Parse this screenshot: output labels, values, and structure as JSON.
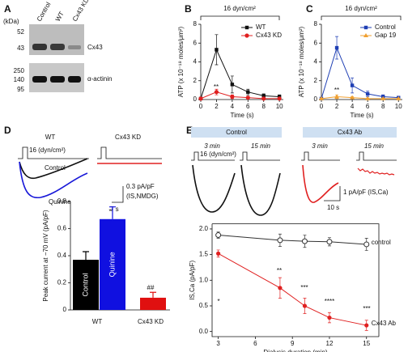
{
  "panels": {
    "letters": [
      "A",
      "B",
      "C",
      "D",
      "E"
    ],
    "blot": {
      "unit": "(kDa)",
      "markers": [
        "52",
        "43",
        "250",
        "140",
        "95"
      ],
      "lanes": [
        "Control",
        "WT",
        "Cx43 KD"
      ],
      "bands": [
        "Cx43",
        "α-actinin"
      ]
    },
    "d_traces": {
      "conditions": [
        "WT",
        "Cx43 KD"
      ],
      "stimulus": "16 (dyn/cm²)",
      "labels": [
        "Control",
        "Quinine"
      ],
      "scale_y": "0.3 pA/pF",
      "scale_y_unit": "(IS,NMDG)",
      "scale_x": "7 s"
    },
    "e_traces": {
      "groups": [
        "Control",
        "Cx43 Ab"
      ],
      "times": [
        "3 min",
        "15 min",
        "3 min",
        "15 min"
      ],
      "stimulus": "16 (dyn/cm²)",
      "scale_y": "1 pA/pF (IS,Ca)",
      "scale_x": "10 s"
    }
  },
  "chart_data": [
    {
      "type": "line",
      "title": "16 dyn/cm²",
      "x": [
        0,
        2,
        4,
        6,
        8,
        10
      ],
      "xlim": [
        0,
        10.5
      ],
      "xticks": [
        0,
        2,
        4,
        6,
        8,
        10
      ],
      "ylim": [
        0,
        8
      ],
      "yticks": [
        0,
        2,
        4,
        6,
        8
      ],
      "x_label": "Time (s)",
      "y_label": "ATP (x 10⁻¹⁸ moles/μm²)",
      "legend": "upper right",
      "annotations": [
        "**"
      ],
      "series": [
        {
          "name": "WT",
          "color": "#111111",
          "marker": "square",
          "values": [
            0.1,
            5.3,
            1.6,
            0.8,
            0.4,
            0.3
          ],
          "errors": [
            0.1,
            1.6,
            0.9,
            0.3,
            0.2,
            0.2
          ]
        },
        {
          "name": "Cx43 KD",
          "color": "#e02020",
          "marker": "circle",
          "values": [
            0.1,
            0.8,
            0.3,
            0.2,
            0.1,
            0.1
          ],
          "errors": [
            0.05,
            0.3,
            0.2,
            0.1,
            0.05,
            0.05
          ]
        }
      ]
    },
    {
      "type": "line",
      "title": "16 dyn/cm²",
      "x": [
        0,
        2,
        4,
        6,
        8,
        10
      ],
      "xlim": [
        0,
        10.5
      ],
      "xticks": [
        0,
        2,
        4,
        6,
        8,
        10
      ],
      "ylim": [
        0,
        8
      ],
      "yticks": [
        0,
        2,
        4,
        6,
        8
      ],
      "x_label": "Time (s)",
      "y_label": "ATP (x 10⁻¹⁸ moles/μm²)",
      "legend": "upper right",
      "annotations": [
        "**"
      ],
      "series": [
        {
          "name": "Control",
          "color": "#1f3fb4",
          "marker": "square",
          "values": [
            0.1,
            5.5,
            1.5,
            0.6,
            0.3,
            0.2
          ],
          "errors": [
            0.1,
            1.2,
            0.8,
            0.3,
            0.2,
            0.1
          ]
        },
        {
          "name": "Gap 19",
          "color": "#f0a030",
          "marker": "triangle",
          "values": [
            0.1,
            0.3,
            0.2,
            0.1,
            0.1,
            0.1
          ],
          "errors": [
            0.05,
            0.2,
            0.1,
            0.05,
            0.05,
            0.05
          ]
        }
      ]
    },
    {
      "type": "bar",
      "categories": [
        "Control",
        "Quinine",
        null
      ],
      "values": [
        0.37,
        0.67,
        0.09
      ],
      "errors": [
        0.06,
        0.09,
        0.04
      ],
      "colors": [
        "#000000",
        "#1010e0",
        "#e01010"
      ],
      "ylim": [
        0,
        0.8
      ],
      "yticks": [
        0,
        0.2,
        0.4,
        0.6,
        0.8
      ],
      "y_label": "Peak current at −70 mV (pA/pF)",
      "groups": [
        "WT",
        "Cx43 KD"
      ],
      "annotations": [
        "*",
        "##"
      ]
    },
    {
      "type": "line",
      "x": [
        3,
        8,
        10,
        12,
        15
      ],
      "xlim": [
        2.5,
        16
      ],
      "xticks": [
        3,
        6,
        9,
        12,
        15
      ],
      "ylim": [
        -0.1,
        2.1
      ],
      "yticks": [
        {
          "value": 0,
          "label": "0.0"
        },
        {
          "value": 0.5,
          "label": "0.5"
        },
        {
          "value": 1,
          "label": "1.0"
        },
        {
          "value": 1.5,
          "label": "1.5"
        },
        {
          "value": 2,
          "label": "2.0"
        }
      ],
      "x_label": "Dialysis duration (min)",
      "y_label": "IS,Ca (pA/pF)",
      "legend": "inline",
      "annotations": [
        "*",
        "**",
        "***",
        "****",
        "***"
      ],
      "series": [
        {
          "name": "control",
          "color": "#333333",
          "marker": "open-circle",
          "values": [
            1.88,
            1.78,
            1.76,
            1.75,
            1.7
          ],
          "errors": [
            0.06,
            0.12,
            0.12,
            0.08,
            0.12
          ]
        },
        {
          "name": "Cx43 Ab",
          "color": "#e02020",
          "marker": "circle",
          "values": [
            1.52,
            0.85,
            0.5,
            0.27,
            0.12
          ],
          "errors": [
            0.07,
            0.2,
            0.15,
            0.1,
            0.1
          ]
        }
      ]
    }
  ]
}
